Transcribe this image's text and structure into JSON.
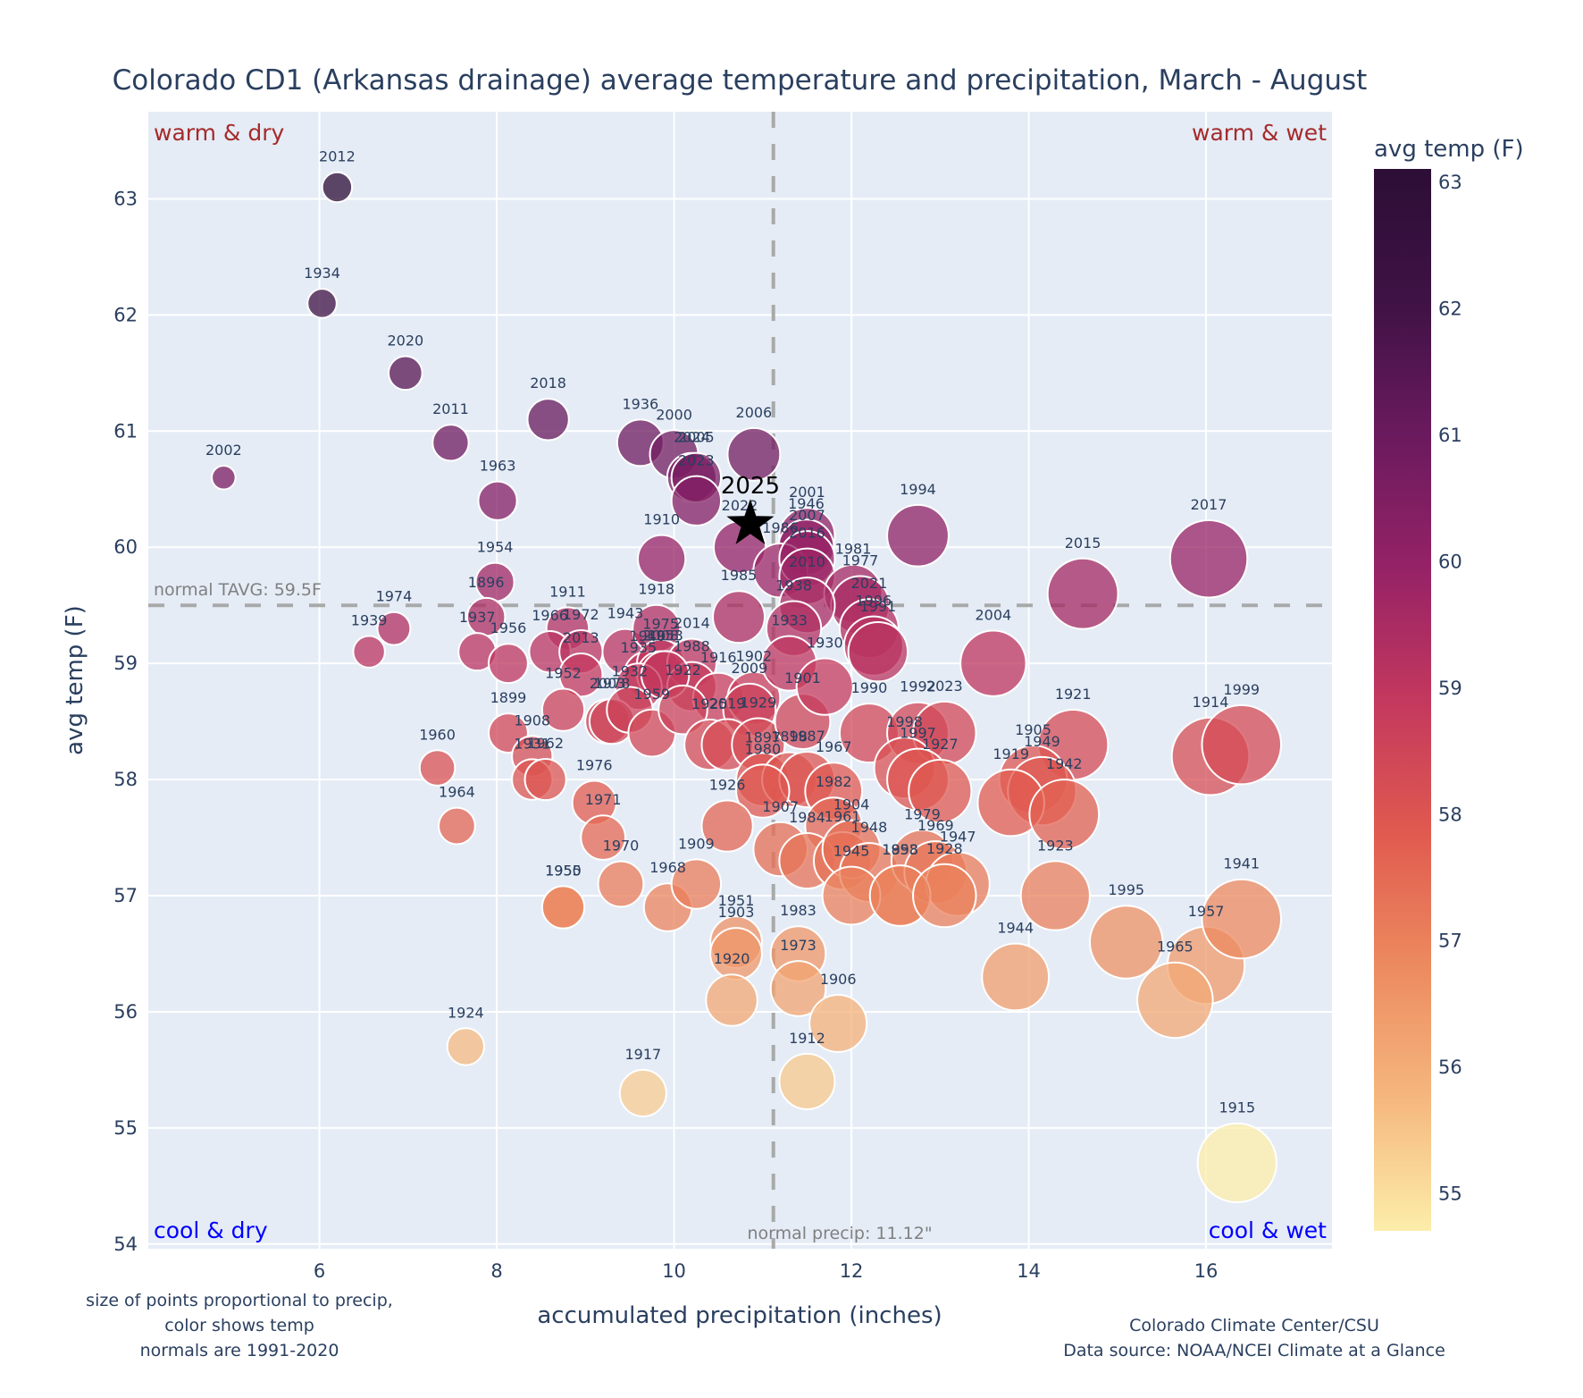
{
  "chart_data": {
    "type": "scatter",
    "title": "Colorado CD1 (Arkansas drainage) average temperature and precipitation, March - August",
    "xlabel": "accumulated precipitation (inches)",
    "ylabel": "avg temp (F)",
    "xlim": [
      4.07,
      17.42
    ],
    "ylim": [
      53.96,
      63.75
    ],
    "x_ticks": [
      6,
      8,
      10,
      12,
      14,
      16
    ],
    "y_ticks": [
      54,
      55,
      56,
      57,
      58,
      59,
      60,
      61,
      62,
      63
    ],
    "grid": true,
    "colorbar": {
      "title": "avg temp (F)",
      "range": [
        54.7,
        63.1
      ],
      "ticks": [
        55,
        56,
        57,
        58,
        59,
        60,
        61,
        62,
        63
      ],
      "colorscale": [
        "#fcedaa",
        "#f5b77e",
        "#ec8a5f",
        "#e05a4f",
        "#c3385e",
        "#952266",
        "#6a1a5e",
        "#3f1245",
        "#2c0e35"
      ]
    },
    "size_encoding": "precipitation",
    "color_encoding": "temperature",
    "normals": {
      "temp": 59.5,
      "temp_label": "normal TAVG: 59.5F",
      "precip": 11.12,
      "precip_label": "normal precip: 11.12\""
    },
    "quadrant_labels": {
      "top_left": "warm & dry",
      "top_right": "warm & wet",
      "bottom_left": "cool & dry",
      "bottom_right": "cool & wet"
    },
    "highlight": {
      "year": "2025",
      "x": 10.86,
      "y": 60.2,
      "marker": "star"
    },
    "points": [
      {
        "year": "2012",
        "x": 6.2,
        "y": 63.1
      },
      {
        "year": "1934",
        "x": 6.03,
        "y": 62.1
      },
      {
        "year": "2020",
        "x": 6.97,
        "y": 61.5
      },
      {
        "year": "2011",
        "x": 7.48,
        "y": 60.9
      },
      {
        "year": "2018",
        "x": 8.58,
        "y": 61.1
      },
      {
        "year": "2002",
        "x": 4.92,
        "y": 60.6
      },
      {
        "year": "1963",
        "x": 8.01,
        "y": 60.4
      },
      {
        "year": "1936",
        "x": 9.62,
        "y": 60.9
      },
      {
        "year": "2000",
        "x": 10.0,
        "y": 60.8
      },
      {
        "year": "2024",
        "x": 10.2,
        "y": 60.6
      },
      {
        "year": "2005",
        "x": 10.25,
        "y": 60.6
      },
      {
        "year": "2023",
        "x": 10.25,
        "y": 60.4
      },
      {
        "year": "2006",
        "x": 10.9,
        "y": 60.8
      },
      {
        "year": "2022",
        "x": 10.74,
        "y": 60.0
      },
      {
        "year": "1910",
        "x": 9.86,
        "y": 59.9
      },
      {
        "year": "1994",
        "x": 12.75,
        "y": 60.1
      },
      {
        "year": "2017",
        "x": 16.03,
        "y": 59.9
      },
      {
        "year": "2015",
        "x": 14.61,
        "y": 59.6
      },
      {
        "year": "2001",
        "x": 11.5,
        "y": 60.1
      },
      {
        "year": "1946",
        "x": 11.49,
        "y": 60.0
      },
      {
        "year": "1986",
        "x": 11.2,
        "y": 59.8
      },
      {
        "year": "2007",
        "x": 11.5,
        "y": 59.9
      },
      {
        "year": "2016",
        "x": 11.5,
        "y": 59.75
      },
      {
        "year": "1981",
        "x": 12.02,
        "y": 59.6
      },
      {
        "year": "1977",
        "x": 12.1,
        "y": 59.5
      },
      {
        "year": "2010",
        "x": 11.5,
        "y": 59.5
      },
      {
        "year": "2021",
        "x": 12.2,
        "y": 59.3
      },
      {
        "year": "1996",
        "x": 12.25,
        "y": 59.15
      },
      {
        "year": "1991",
        "x": 12.3,
        "y": 59.1
      },
      {
        "year": "1985",
        "x": 10.73,
        "y": 59.4
      },
      {
        "year": "1938",
        "x": 11.35,
        "y": 59.3
      },
      {
        "year": "2004",
        "x": 13.6,
        "y": 59.0
      },
      {
        "year": "1974",
        "x": 6.84,
        "y": 59.3
      },
      {
        "year": "1939",
        "x": 6.56,
        "y": 59.1
      },
      {
        "year": "1954",
        "x": 7.98,
        "y": 59.7
      },
      {
        "year": "1896",
        "x": 7.88,
        "y": 59.4
      },
      {
        "year": "1937",
        "x": 7.78,
        "y": 59.1
      },
      {
        "year": "1956",
        "x": 8.13,
        "y": 59.0
      },
      {
        "year": "1911",
        "x": 8.8,
        "y": 59.3
      },
      {
        "year": "1966",
        "x": 8.6,
        "y": 59.1
      },
      {
        "year": "1972",
        "x": 8.95,
        "y": 59.1
      },
      {
        "year": "2013",
        "x": 8.95,
        "y": 58.9
      },
      {
        "year": "1952",
        "x": 8.75,
        "y": 58.6
      },
      {
        "year": "1943",
        "x": 9.45,
        "y": 59.1
      },
      {
        "year": "1918",
        "x": 9.8,
        "y": 59.3
      },
      {
        "year": "1940",
        "x": 9.7,
        "y": 58.9
      },
      {
        "year": "1975",
        "x": 9.85,
        "y": 59.0
      },
      {
        "year": "2008",
        "x": 9.85,
        "y": 58.9
      },
      {
        "year": "2014",
        "x": 10.2,
        "y": 59.0
      },
      {
        "year": "1988",
        "x": 10.2,
        "y": 58.8
      },
      {
        "year": "1935",
        "x": 9.6,
        "y": 58.8
      },
      {
        "year": "1953",
        "x": 9.9,
        "y": 58.9
      },
      {
        "year": "2003",
        "x": 9.25,
        "y": 58.5
      },
      {
        "year": "1978",
        "x": 9.3,
        "y": 58.5
      },
      {
        "year": "1932",
        "x": 9.5,
        "y": 58.6
      },
      {
        "year": "1959",
        "x": 9.75,
        "y": 58.4
      },
      {
        "year": "1916",
        "x": 10.5,
        "y": 58.7
      },
      {
        "year": "1902",
        "x": 10.9,
        "y": 58.7
      },
      {
        "year": "2009",
        "x": 10.85,
        "y": 58.6
      },
      {
        "year": "1922",
        "x": 10.1,
        "y": 58.6
      },
      {
        "year": "1925",
        "x": 10.4,
        "y": 58.3
      },
      {
        "year": "2019",
        "x": 10.6,
        "y": 58.3
      },
      {
        "year": "1929",
        "x": 10.95,
        "y": 58.3
      },
      {
        "year": "1901",
        "x": 11.45,
        "y": 58.5
      },
      {
        "year": "1933",
        "x": 11.3,
        "y": 59.0
      },
      {
        "year": "1930",
        "x": 11.7,
        "y": 58.8
      },
      {
        "year": "1990",
        "x": 12.2,
        "y": 58.4
      },
      {
        "year": "1897",
        "x": 11.0,
        "y": 58.0
      },
      {
        "year": "1898",
        "x": 11.3,
        "y": 58.0
      },
      {
        "year": "1987",
        "x": 11.5,
        "y": 58.0
      },
      {
        "year": "1980",
        "x": 11.0,
        "y": 57.9
      },
      {
        "year": "1967",
        "x": 11.8,
        "y": 57.9
      },
      {
        "year": "1982",
        "x": 11.8,
        "y": 57.6
      },
      {
        "year": "1907",
        "x": 11.2,
        "y": 57.4
      },
      {
        "year": "1984",
        "x": 11.5,
        "y": 57.3
      },
      {
        "year": "1961",
        "x": 11.9,
        "y": 57.3
      },
      {
        "year": "1904",
        "x": 12.0,
        "y": 57.4
      },
      {
        "year": "1948",
        "x": 12.2,
        "y": 57.2
      },
      {
        "year": "1893",
        "x": 12.55,
        "y": 57.0
      },
      {
        "year": "1979",
        "x": 12.8,
        "y": 57.3
      },
      {
        "year": "1969",
        "x": 12.95,
        "y": 57.2
      },
      {
        "year": "1947",
        "x": 13.2,
        "y": 57.1
      },
      {
        "year": "1945",
        "x": 12.0,
        "y": 57.0
      },
      {
        "year": "1958",
        "x": 12.55,
        "y": 57.0
      },
      {
        "year": "1928",
        "x": 13.05,
        "y": 57.0
      },
      {
        "year": "1992",
        "x": 12.75,
        "y": 58.4
      },
      {
        "year": "2023b",
        "x": 13.05,
        "y": 58.4
      },
      {
        "year": "1998",
        "x": 12.6,
        "y": 58.1
      },
      {
        "year": "1997",
        "x": 12.75,
        "y": 58.0
      },
      {
        "year": "1927",
        "x": 13.0,
        "y": 57.9
      },
      {
        "year": "1921",
        "x": 14.5,
        "y": 58.3
      },
      {
        "year": "1905",
        "x": 14.05,
        "y": 58.0
      },
      {
        "year": "1949",
        "x": 14.15,
        "y": 57.9
      },
      {
        "year": "1919",
        "x": 13.8,
        "y": 57.8
      },
      {
        "year": "1942",
        "x": 14.4,
        "y": 57.7
      },
      {
        "year": "1914",
        "x": 16.05,
        "y": 58.2
      },
      {
        "year": "1999",
        "x": 16.4,
        "y": 58.3
      },
      {
        "year": "1923",
        "x": 14.3,
        "y": 57.0
      },
      {
        "year": "1944",
        "x": 13.85,
        "y": 56.3
      },
      {
        "year": "1995",
        "x": 15.1,
        "y": 56.6
      },
      {
        "year": "1957",
        "x": 16.0,
        "y": 56.4
      },
      {
        "year": "1965",
        "x": 15.65,
        "y": 56.1
      },
      {
        "year": "1941",
        "x": 16.4,
        "y": 56.8
      },
      {
        "year": "1915",
        "x": 16.35,
        "y": 54.7
      },
      {
        "year": "1899",
        "x": 8.13,
        "y": 58.4
      },
      {
        "year": "1908",
        "x": 8.4,
        "y": 58.2
      },
      {
        "year": "1931",
        "x": 8.4,
        "y": 58.0
      },
      {
        "year": "1962",
        "x": 8.55,
        "y": 58.0
      },
      {
        "year": "1960",
        "x": 7.33,
        "y": 58.1
      },
      {
        "year": "1964",
        "x": 7.55,
        "y": 57.6
      },
      {
        "year": "1976",
        "x": 9.1,
        "y": 57.8
      },
      {
        "year": "1971",
        "x": 9.2,
        "y": 57.5
      },
      {
        "year": "1970",
        "x": 9.4,
        "y": 57.1
      },
      {
        "year": "1950",
        "x": 8.75,
        "y": 56.9
      },
      {
        "year": "1955",
        "x": 8.75,
        "y": 56.9
      },
      {
        "year": "1968",
        "x": 9.93,
        "y": 56.9
      },
      {
        "year": "1909",
        "x": 10.25,
        "y": 57.1
      },
      {
        "year": "1926",
        "x": 10.6,
        "y": 57.6
      },
      {
        "year": "1951",
        "x": 10.7,
        "y": 56.6
      },
      {
        "year": "1903",
        "x": 10.7,
        "y": 56.5
      },
      {
        "year": "1920",
        "x": 10.65,
        "y": 56.1
      },
      {
        "year": "1983",
        "x": 11.4,
        "y": 56.5
      },
      {
        "year": "1973",
        "x": 11.4,
        "y": 56.2
      },
      {
        "year": "1906",
        "x": 11.85,
        "y": 55.9
      },
      {
        "year": "1912",
        "x": 11.5,
        "y": 55.4
      },
      {
        "year": "1917",
        "x": 9.65,
        "y": 55.3
      },
      {
        "year": "1924",
        "x": 7.65,
        "y": 55.7
      }
    ]
  },
  "footnotes": {
    "left": [
      "size of points proportional to precip,",
      "color shows temp",
      "normals are 1991-2020"
    ],
    "right": [
      "Colorado Climate Center/CSU",
      "Data source: NOAA/NCEI Climate at a Glance"
    ]
  }
}
